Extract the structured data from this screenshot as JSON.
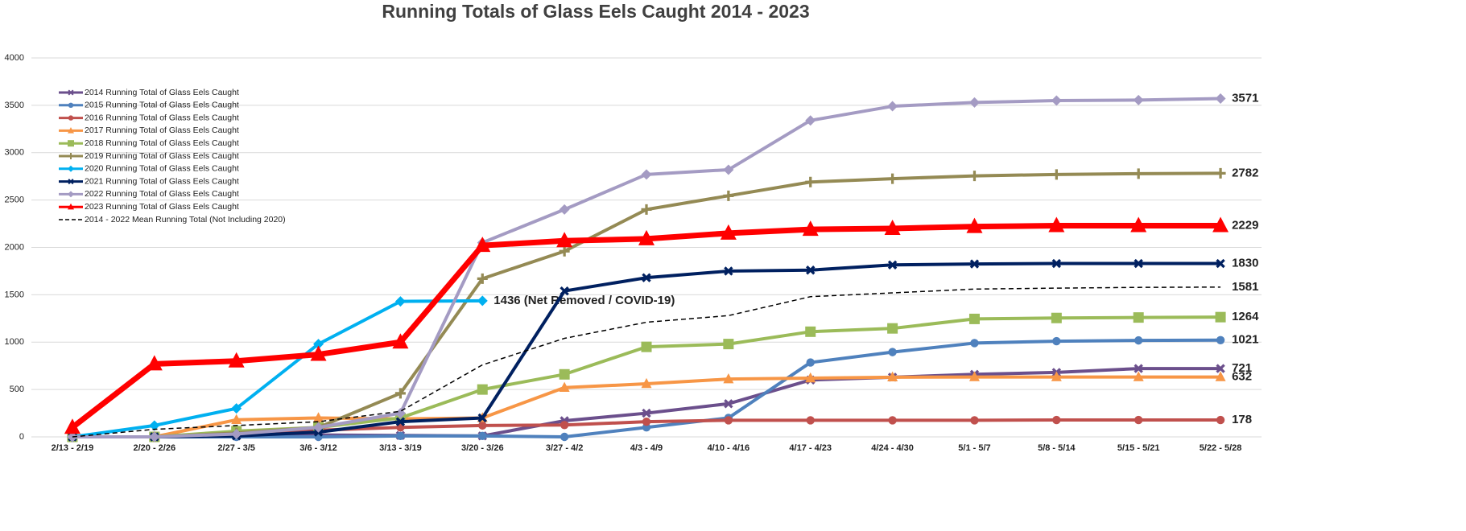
{
  "chart_data": {
    "type": "line",
    "title": "Running Totals of Glass Eels Caught 2014 - 2023",
    "categories": [
      "2/13 - 2/19",
      "2/20 - 2/26",
      "2/27 - 3/5",
      "3/6 - 3/12",
      "3/13 - 3/19",
      "3/20 - 3/26",
      "3/27 - 4/2",
      "4/3 - 4/9",
      "4/10 - 4/16",
      "4/17 - 4/23",
      "4/24 - 4/30",
      "5/1 - 5/7",
      "5/8 - 5/14",
      "5/15 - 5/21",
      "5/22 - 5/28"
    ],
    "ylim": [
      0,
      4000
    ],
    "yticks": [
      0,
      500,
      1000,
      1500,
      2000,
      2500,
      3000,
      3500,
      4000
    ],
    "grid": true,
    "legend": "upper left",
    "series": [
      {
        "name": "2014 Running Total of Glass Eels Caught",
        "color": "#6b4f8c",
        "marker": "x",
        "values": [
          0,
          0,
          10,
          20,
          15,
          10,
          170,
          250,
          350,
          600,
          630,
          660,
          680,
          721,
          721
        ],
        "value_labels": [
          null,
          null,
          null,
          null,
          null,
          null,
          null,
          null,
          null,
          null,
          null,
          null,
          null,
          null,
          "721"
        ]
      },
      {
        "name": "2015 Running Total of Glass Eels Caught",
        "color": "#4f81bd",
        "marker": "circle",
        "values": [
          0,
          0,
          0,
          0,
          10,
          10,
          0,
          100,
          200,
          785,
          895,
          990,
          1010,
          1018,
          1021
        ],
        "value_labels": [
          null,
          null,
          null,
          null,
          null,
          null,
          null,
          null,
          null,
          null,
          null,
          null,
          null,
          null,
          "1021"
        ]
      },
      {
        "name": "2016 Running Total of Glass Eels Caught",
        "color": "#c0504d",
        "marker": "circle",
        "values": [
          0,
          0,
          40,
          70,
          100,
          120,
          125,
          160,
          175,
          175,
          175,
          175,
          178,
          178,
          178
        ],
        "value_labels": [
          null,
          null,
          null,
          null,
          null,
          null,
          null,
          null,
          null,
          null,
          null,
          null,
          null,
          null,
          "178"
        ]
      },
      {
        "name": "2017 Running Total of Glass Eels Caught",
        "color": "#f79646",
        "marker": "triangle",
        "values": [
          0,
          0,
          180,
          200,
          190,
          200,
          520,
          560,
          610,
          620,
          630,
          632,
          632,
          632,
          632
        ],
        "value_labels": [
          null,
          null,
          null,
          null,
          null,
          null,
          null,
          null,
          null,
          null,
          null,
          null,
          null,
          null,
          "632"
        ]
      },
      {
        "name": "2018 Running Total of Glass Eels Caught",
        "color": "#9bbb59",
        "marker": "square",
        "values": [
          0,
          0,
          60,
          100,
          200,
          500,
          660,
          950,
          980,
          1110,
          1145,
          1245,
          1255,
          1260,
          1264
        ],
        "value_labels": [
          null,
          null,
          null,
          null,
          null,
          null,
          null,
          null,
          null,
          null,
          null,
          null,
          null,
          null,
          "1264"
        ]
      },
      {
        "name": "2019 Running Total of Glass Eels Caught",
        "color": "#948a54",
        "marker": "plus",
        "values": [
          0,
          0,
          40,
          100,
          460,
          1670,
          1960,
          2400,
          2545,
          2690,
          2725,
          2755,
          2770,
          2778,
          2782
        ],
        "value_labels": [
          null,
          null,
          null,
          null,
          null,
          null,
          null,
          null,
          null,
          null,
          null,
          null,
          null,
          null,
          "2782"
        ]
      },
      {
        "name": "2020 Running Total of Glass Eels Caught",
        "color": "#00b0f0",
        "marker": "diamond",
        "values": [
          0,
          120,
          300,
          980,
          1430,
          1436,
          null,
          null,
          null,
          null,
          null,
          null,
          null,
          null,
          null
        ],
        "value_labels": [
          null,
          null,
          null,
          null,
          null,
          "1436 (Net Removed / COVID-19)",
          null,
          null,
          null,
          null,
          null,
          null,
          null,
          null,
          null
        ]
      },
      {
        "name": "2021 Running Total of Glass Eels Caught",
        "color": "#002060",
        "marker": "x",
        "values": [
          0,
          0,
          10,
          50,
          160,
          200,
          1540,
          1680,
          1750,
          1760,
          1815,
          1825,
          1830,
          1830,
          1830
        ],
        "value_labels": [
          null,
          null,
          null,
          null,
          null,
          null,
          null,
          null,
          null,
          null,
          null,
          null,
          null,
          null,
          "1830"
        ]
      },
      {
        "name": "2022 Running Total of Glass Eels Caught",
        "color": "#a49bc3",
        "marker": "diamond",
        "values": [
          0,
          0,
          30,
          100,
          250,
          2050,
          2400,
          2770,
          2820,
          3340,
          3490,
          3530,
          3550,
          3555,
          3571
        ],
        "value_labels": [
          null,
          null,
          null,
          null,
          null,
          null,
          null,
          null,
          null,
          null,
          null,
          null,
          null,
          null,
          "3571"
        ]
      },
      {
        "name": "2023 Running Total of Glass Eels Caught",
        "color": "#ff0000",
        "marker": "triangle",
        "values": [
          100,
          770,
          800,
          870,
          1000,
          2020,
          2070,
          2090,
          2150,
          2190,
          2200,
          2220,
          2229,
          2229,
          2229
        ],
        "value_labels": [
          null,
          null,
          null,
          null,
          null,
          null,
          null,
          null,
          null,
          null,
          null,
          null,
          null,
          null,
          "2229"
        ]
      },
      {
        "name": "2014 - 2022 Mean Running Total (Not Including 2020)",
        "color": "#000000",
        "marker": "none",
        "dashed": true,
        "values": [
          0,
          80,
          120,
          160,
          270,
          760,
          1040,
          1210,
          1280,
          1480,
          1520,
          1560,
          1570,
          1578,
          1581
        ],
        "value_labels": [
          null,
          null,
          null,
          null,
          null,
          null,
          null,
          null,
          null,
          null,
          null,
          null,
          null,
          null,
          "1581"
        ]
      }
    ]
  }
}
